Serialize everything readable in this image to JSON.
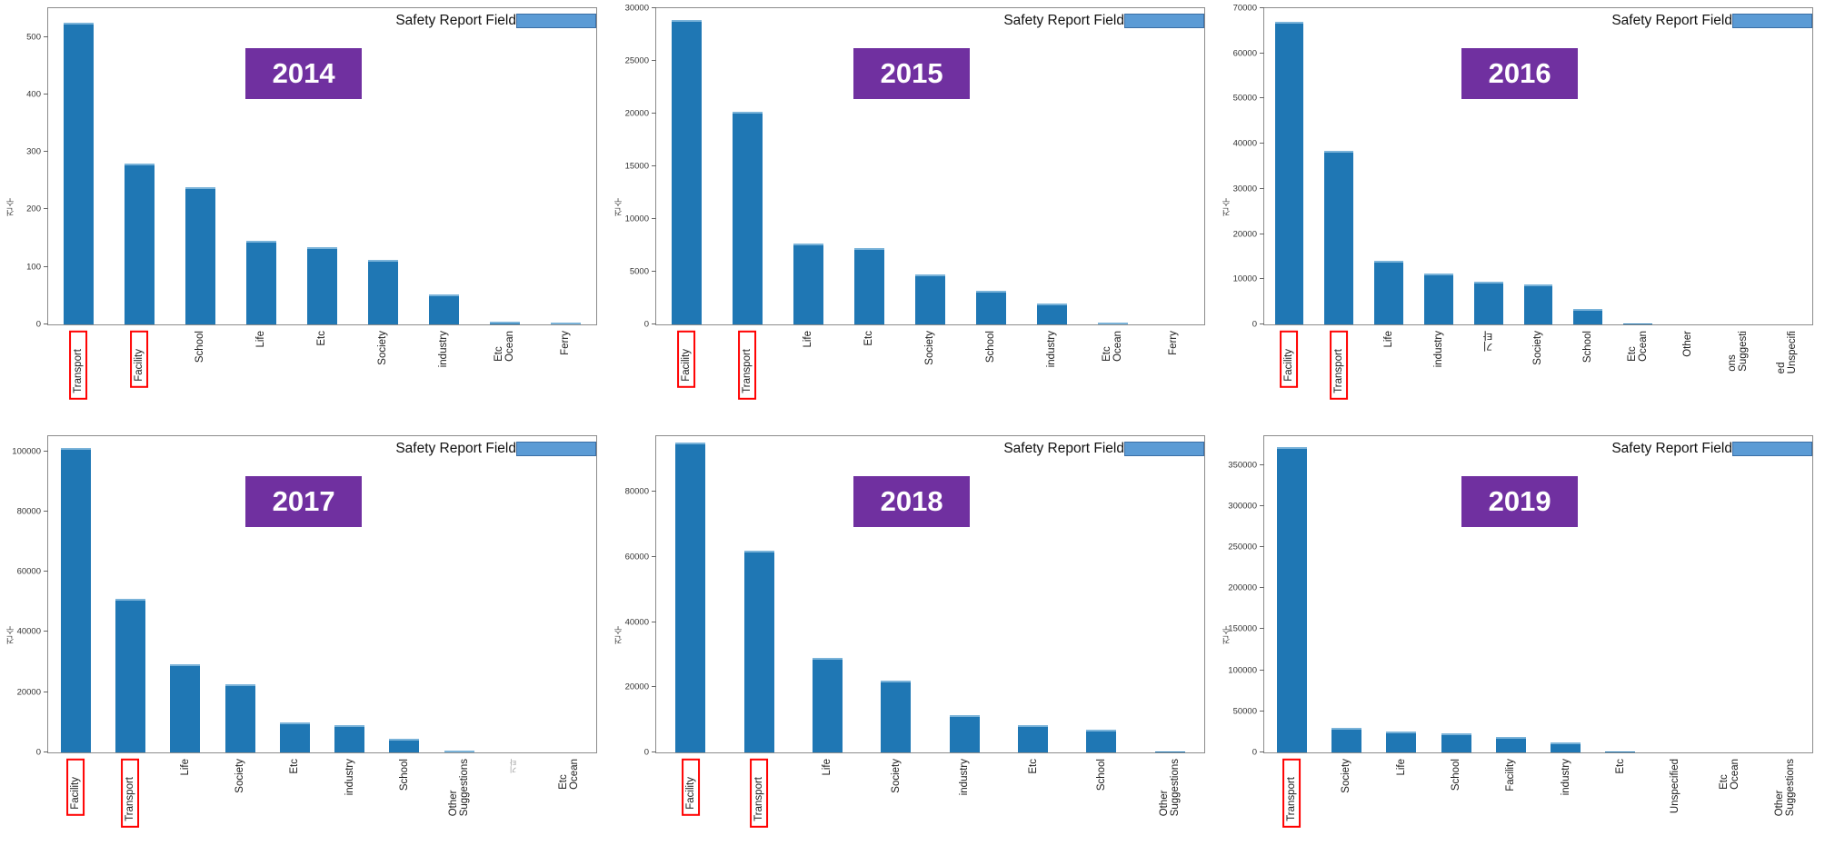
{
  "legend_label": "Safety Report Field",
  "ylabel": "건수",
  "colors": {
    "bar": "#1f77b4",
    "legend_swatch": "#5b9bd5",
    "legend_swatch_border": "#3a6ea5",
    "year_badge": "#7030a0",
    "annotation_box": "#ff0000"
  },
  "chart_data": [
    {
      "type": "bar",
      "title": "2014",
      "ylabel": "건수",
      "legend": "Safety Report Field",
      "ymax": 550,
      "ticks": [
        0,
        100,
        200,
        300,
        400,
        500
      ],
      "categories": [
        "Transport",
        "Facility",
        "School",
        "Life",
        "Etc",
        "Society",
        "industry",
        "Ocean\nEtc",
        "Ferry"
      ],
      "values": [
        525,
        280,
        238,
        146,
        135,
        113,
        52,
        5,
        3
      ],
      "boxed": [
        0,
        1
      ],
      "gray": []
    },
    {
      "type": "bar",
      "title": "2015",
      "ylabel": "건수",
      "legend": "Safety Report Field",
      "ymax": 30000,
      "ticks": [
        0,
        5000,
        10000,
        15000,
        20000,
        25000,
        30000
      ],
      "categories": [
        "Facility",
        "Transport",
        "Life",
        "Etc",
        "Society",
        "School",
        "industry",
        "Ocean\nEtc",
        "Ferry"
      ],
      "values": [
        28900,
        20200,
        7700,
        7200,
        4700,
        3200,
        2000,
        150,
        20
      ],
      "boxed": [
        0,
        1
      ],
      "gray": []
    },
    {
      "type": "bar",
      "title": "2016",
      "ylabel": "건수",
      "legend": "Safety Report Field",
      "ymax": 70000,
      "ticks": [
        0,
        10000,
        20000,
        30000,
        40000,
        50000,
        60000,
        70000
      ],
      "categories": [
        "Facility",
        "Transport",
        "Life",
        "industry",
        "기타",
        "Society",
        "School",
        "Ocean\nEtc",
        "Other",
        "Suggesti\nons",
        "Unspecifi\ned"
      ],
      "values": [
        67000,
        38500,
        14000,
        11300,
        9500,
        8800,
        3500,
        150,
        80,
        50,
        30
      ],
      "boxed": [
        0,
        1
      ],
      "gray": []
    },
    {
      "type": "bar",
      "title": "2017",
      "ylabel": "건수",
      "legend": "Safety Report Field",
      "ymax": 105000,
      "ticks": [
        0,
        20000,
        40000,
        60000,
        80000,
        100000
      ],
      "categories": [
        "Facility",
        "Transport",
        "Life",
        "Society",
        "Etc",
        "industry",
        "School",
        "Suggestions\nOther",
        "기타",
        "Ocean\nEtc"
      ],
      "values": [
        101000,
        51000,
        29200,
        22500,
        10000,
        9200,
        4600,
        700,
        0,
        0
      ],
      "boxed": [
        0,
        1
      ],
      "gray": [
        8
      ]
    },
    {
      "type": "bar",
      "title": "2018",
      "ylabel": "건수",
      "legend": "Safety Report Field",
      "ymax": 97000,
      "ticks": [
        0,
        20000,
        40000,
        60000,
        80000
      ],
      "categories": [
        "Facility",
        "Transport",
        "Life",
        "Society",
        "industry",
        "Etc",
        "School",
        "Suggestions\nOther"
      ],
      "values": [
        95000,
        62000,
        29000,
        22000,
        11500,
        8500,
        7000,
        150
      ],
      "boxed": [
        0,
        1
      ],
      "gray": []
    },
    {
      "type": "bar",
      "title": "2019",
      "ylabel": "건수",
      "legend": "Safety Report Field",
      "ymax": 385000,
      "ticks": [
        0,
        50000,
        100000,
        150000,
        200000,
        250000,
        300000,
        350000
      ],
      "categories": [
        "Transport",
        "Society",
        "Life",
        "School",
        "Facility",
        "industry",
        "Etc",
        "Unspecified",
        "Ocean\nEtc",
        "Suggestions\nOther"
      ],
      "values": [
        372000,
        30000,
        25000,
        23000,
        19000,
        12000,
        800,
        300,
        150,
        80
      ],
      "boxed": [
        0
      ],
      "gray": []
    }
  ]
}
